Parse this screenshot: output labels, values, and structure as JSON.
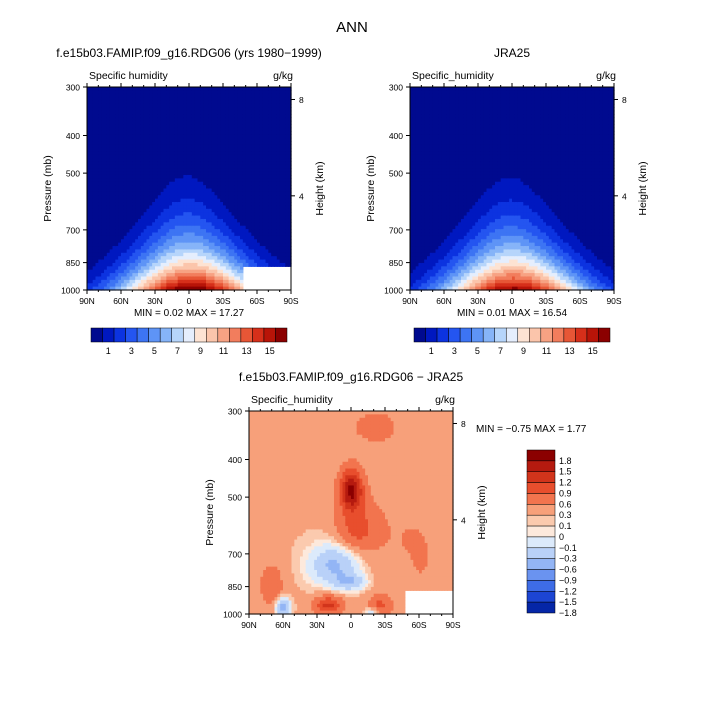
{
  "figure_title": "ANN",
  "chart_data": [
    {
      "type": "heatmap",
      "title": "f.e15b03.FAMIP.f09_g16.RDG06 (yrs 1980−1999)",
      "variable": "Specific humidity",
      "units": "g/kg",
      "xlabel": "",
      "ylabel": "Pressure (mb)",
      "ylabel_right": "Height (km)",
      "x_ticks": [
        "90N",
        "60N",
        "30N",
        "0",
        "30S",
        "60S",
        "90S"
      ],
      "y_ticks": [
        "300",
        "400",
        "500",
        "700",
        "850",
        "1000"
      ],
      "height_ticks": [
        "8",
        "4"
      ],
      "xlim": [
        90,
        -90
      ],
      "ylim": [
        1000,
        300
      ],
      "min_label": "MIN =",
      "min": "0.02",
      "max_label": "MAX =",
      "max": "17.27",
      "peak_value": 17.27,
      "colorbar_ticks": [
        "1",
        "3",
        "5",
        "7",
        "9",
        "11",
        "13",
        "15"
      ]
    },
    {
      "type": "heatmap",
      "title": "JRA25",
      "variable": "Specific_humidity",
      "units": "g/kg",
      "xlabel": "",
      "ylabel": "Pressure (mb)",
      "ylabel_right": "Height (km)",
      "x_ticks": [
        "90N",
        "60N",
        "30N",
        "0",
        "30S",
        "60S",
        "90S"
      ],
      "y_ticks": [
        "300",
        "400",
        "500",
        "700",
        "850",
        "1000"
      ],
      "height_ticks": [
        "8",
        "4"
      ],
      "xlim": [
        90,
        -90
      ],
      "ylim": [
        1000,
        300
      ],
      "min_label": "MIN =",
      "min": "0.01",
      "max_label": "MAX =",
      "max": "16.54",
      "peak_value": 16.54,
      "colorbar_ticks": [
        "1",
        "3",
        "5",
        "7",
        "9",
        "11",
        "13",
        "15"
      ]
    },
    {
      "type": "heatmap",
      "title": "f.e15b03.FAMIP.f09_g16.RDG06 − JRA25",
      "variable": "Specific_humidity",
      "units": "g/kg",
      "xlabel": "",
      "ylabel": "Pressure (mb)",
      "ylabel_right": "Height (km)",
      "x_ticks": [
        "90N",
        "60N",
        "30N",
        "0",
        "30S",
        "60S",
        "90S"
      ],
      "y_ticks": [
        "300",
        "400",
        "500",
        "700",
        "850",
        "1000"
      ],
      "height_ticks": [
        "8",
        "4"
      ],
      "xlim": [
        90,
        -90
      ],
      "ylim": [
        1000,
        300
      ],
      "min_label": "MIN =",
      "min": "−0.75",
      "max_label": "MAX =",
      "max": "1.77",
      "colorbar_labels": [
        "1.8",
        "1.5",
        "1.2",
        "0.9",
        "0.6",
        "0.3",
        "0.1",
        "0",
        "−0.1",
        "−0.3",
        "−0.6",
        "−0.9",
        "−1.2",
        "−1.5",
        "−1.8"
      ]
    }
  ],
  "colors": {
    "abs_levels": [
      "#000a8f",
      "#0018c0",
      "#0c33e0",
      "#2455f0",
      "#3d74f3",
      "#5e94f6",
      "#86b4f8",
      "#b6d5fb",
      "#e5eefd",
      "#fde3d3",
      "#fbc5ab",
      "#f7a283",
      "#f27d5d",
      "#e75636",
      "#d62f1a",
      "#b81408",
      "#8b0000"
    ],
    "diff_levels": [
      "#8b0000",
      "#b51a0f",
      "#d2341b",
      "#e84e2d",
      "#f2744e",
      "#f7a07a",
      "#fbcaae",
      "#fde9dc",
      "#dceafb",
      "#b9d1f8",
      "#93b5f5",
      "#6a93f0",
      "#3e6ce6",
      "#1c45d3",
      "#0526a7"
    ]
  }
}
